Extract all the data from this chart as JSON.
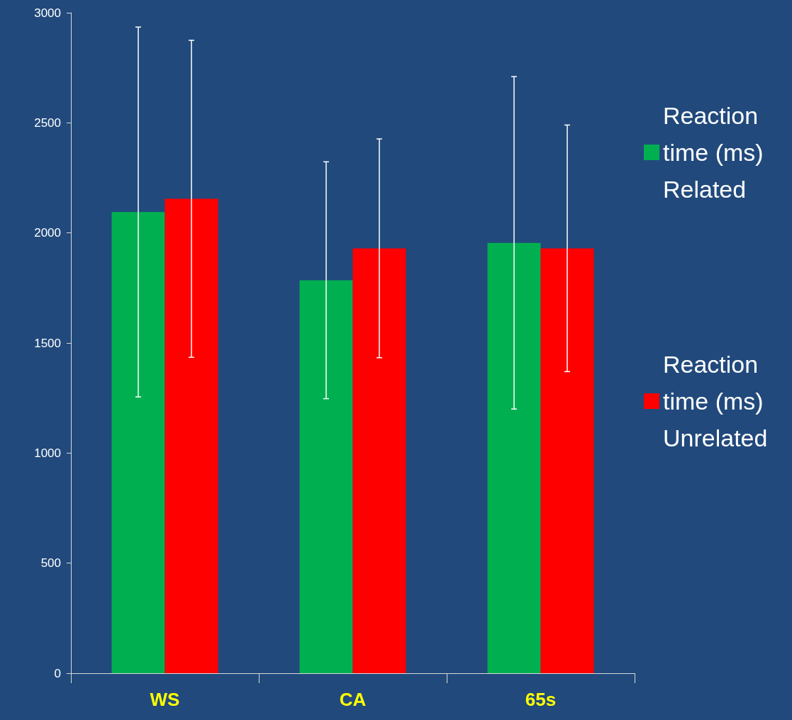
{
  "chart_data": {
    "type": "bar",
    "categories": [
      "WS",
      "CA",
      "65s"
    ],
    "series": [
      {
        "name": "Reaction time (ms) Related",
        "color": "#00b050",
        "values": [
          2095,
          1785,
          1955
        ],
        "errors": [
          840,
          538,
          755
        ]
      },
      {
        "name": "Reaction time (ms) Unrelated",
        "color": "#ff0000",
        "values": [
          2155,
          1930,
          1930
        ],
        "errors": [
          720,
          497,
          560
        ]
      }
    ],
    "ylim": [
      0,
      3000
    ],
    "yticks": [
      0,
      500,
      1000,
      1500,
      2000,
      2500,
      3000
    ],
    "grid": false,
    "legend": "right"
  }
}
